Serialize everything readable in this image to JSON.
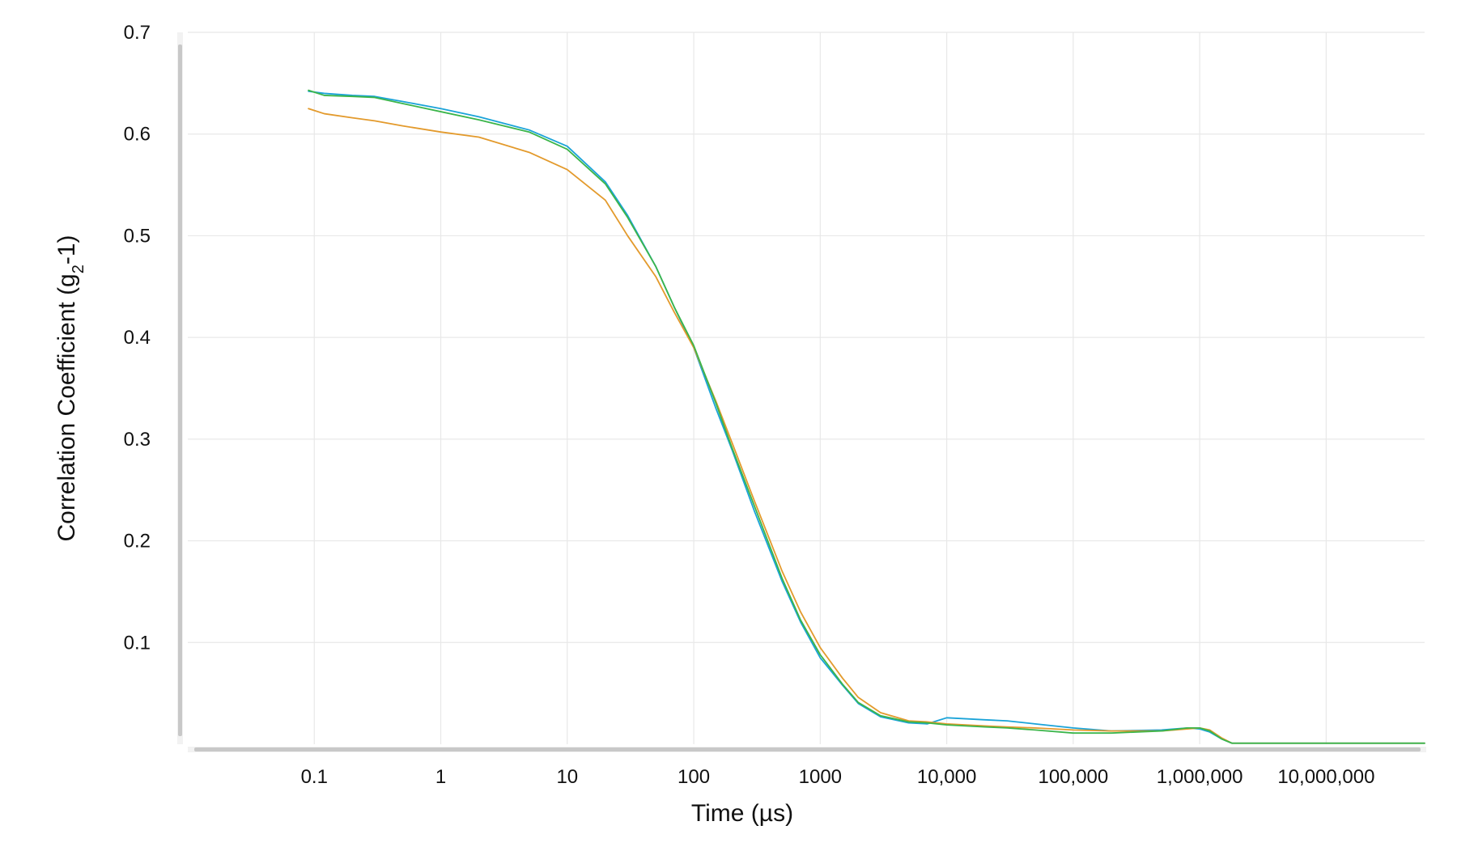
{
  "chart_data": {
    "type": "line",
    "title": "",
    "xlabel": "Time (µs)",
    "ylabel_main": "Correlation Coefficient (g",
    "ylabel_sub": "2",
    "ylabel_tail": "-1)",
    "x_scale": "log",
    "xlim": [
      0.01,
      60000000
    ],
    "ylim": [
      0,
      0.7
    ],
    "grid": true,
    "legend": "none",
    "x_ticks": [
      {
        "value": 0.1,
        "label": "0.1"
      },
      {
        "value": 1,
        "label": "1"
      },
      {
        "value": 10,
        "label": "10"
      },
      {
        "value": 100,
        "label": "100"
      },
      {
        "value": 1000,
        "label": "1000"
      },
      {
        "value": 10000,
        "label": "10,000"
      },
      {
        "value": 100000,
        "label": "100,000"
      },
      {
        "value": 1000000,
        "label": "1,000,000"
      },
      {
        "value": 10000000,
        "label": "10,000,000"
      }
    ],
    "y_ticks": [
      {
        "value": 0.1,
        "label": "0.1"
      },
      {
        "value": 0.2,
        "label": "0.2"
      },
      {
        "value": 0.3,
        "label": "0.3"
      },
      {
        "value": 0.4,
        "label": "0.4"
      },
      {
        "value": 0.5,
        "label": "0.5"
      },
      {
        "value": 0.6,
        "label": "0.6"
      },
      {
        "value": 0.7,
        "label": "0.7"
      }
    ],
    "series": [
      {
        "color": "#1aa3d8",
        "x": [
          0.09,
          0.12,
          0.2,
          0.3,
          0.5,
          1,
          2,
          5,
          10,
          20,
          30,
          50,
          70,
          100,
          150,
          200,
          300,
          500,
          700,
          1000,
          1500,
          2000,
          3000,
          5000,
          7000,
          10000,
          20000,
          30000,
          50000,
          100000,
          200000,
          500000,
          800000,
          1000000,
          1200000,
          1500000,
          1800000,
          3000000,
          10000000,
          60000000
        ],
        "y": [
          0.642,
          0.64,
          0.638,
          0.637,
          0.632,
          0.625,
          0.617,
          0.604,
          0.588,
          0.553,
          0.52,
          0.47,
          0.43,
          0.39,
          0.33,
          0.29,
          0.23,
          0.16,
          0.12,
          0.085,
          0.058,
          0.04,
          0.027,
          0.021,
          0.02,
          0.026,
          0.024,
          0.023,
          0.02,
          0.016,
          0.013,
          0.014,
          0.016,
          0.015,
          0.012,
          0.005,
          0.001,
          0.001,
          0.001,
          0.001
        ]
      },
      {
        "color": "#e39a2c",
        "x": [
          0.09,
          0.12,
          0.2,
          0.3,
          0.5,
          1,
          2,
          5,
          10,
          20,
          30,
          50,
          70,
          100,
          150,
          200,
          300,
          500,
          700,
          1000,
          1500,
          2000,
          3000,
          5000,
          7000,
          10000,
          20000,
          30000,
          50000,
          100000,
          200000,
          500000,
          800000,
          1000000,
          1200000,
          1500000,
          1800000,
          3000000,
          10000000,
          60000000
        ],
        "y": [
          0.625,
          0.62,
          0.616,
          0.613,
          0.608,
          0.602,
          0.597,
          0.582,
          0.565,
          0.535,
          0.5,
          0.46,
          0.425,
          0.39,
          0.337,
          0.297,
          0.24,
          0.17,
          0.13,
          0.095,
          0.065,
          0.046,
          0.031,
          0.023,
          0.022,
          0.02,
          0.018,
          0.017,
          0.016,
          0.014,
          0.013,
          0.013,
          0.015,
          0.016,
          0.014,
          0.006,
          0.001,
          0.001,
          0.001,
          0.001
        ]
      },
      {
        "color": "#3bb54a",
        "x": [
          0.09,
          0.12,
          0.2,
          0.3,
          0.5,
          1,
          2,
          5,
          10,
          20,
          30,
          50,
          70,
          100,
          150,
          200,
          300,
          500,
          700,
          1000,
          1500,
          2000,
          3000,
          5000,
          7000,
          10000,
          20000,
          30000,
          50000,
          100000,
          200000,
          500000,
          800000,
          1000000,
          1200000,
          1500000,
          1800000,
          3000000,
          10000000,
          60000000
        ],
        "y": [
          0.643,
          0.638,
          0.637,
          0.636,
          0.63,
          0.622,
          0.614,
          0.602,
          0.585,
          0.551,
          0.518,
          0.47,
          0.43,
          0.392,
          0.335,
          0.292,
          0.235,
          0.163,
          0.122,
          0.088,
          0.059,
          0.041,
          0.028,
          0.022,
          0.021,
          0.019,
          0.017,
          0.016,
          0.014,
          0.011,
          0.011,
          0.013,
          0.016,
          0.016,
          0.013,
          0.005,
          0.001,
          0.001,
          0.001,
          0.001
        ]
      }
    ]
  }
}
